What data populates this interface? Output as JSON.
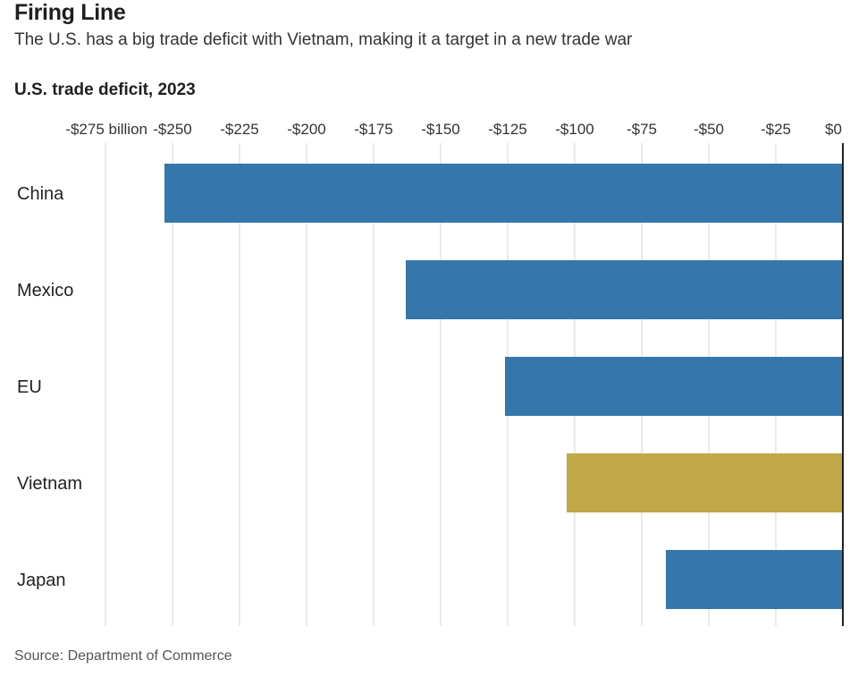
{
  "header": {
    "title": "Firing Line",
    "subtitle": "The U.S. has a big trade deficit with Vietnam, making it a target in a new trade war"
  },
  "source": "Source: Department of Commerce",
  "colors": {
    "default_bar": "#3577aa",
    "highlight_bar": "#c0a848",
    "grid": "#dcdcdc",
    "axis": "#222222"
  },
  "chart_data": {
    "type": "bar",
    "orientation": "horizontal",
    "title": "U.S. trade deficit, 2023",
    "categories": [
      "China",
      "Mexico",
      "EU",
      "Vietnam",
      "Japan"
    ],
    "values": [
      -253,
      -163,
      -126,
      -103,
      -66
    ],
    "highlight": "Vietnam",
    "xlim": [
      -275,
      0
    ],
    "ticks": [
      -275,
      -250,
      -225,
      -200,
      -175,
      -150,
      -125,
      -100,
      -75,
      -50,
      -25,
      0
    ],
    "tick_labels": [
      "-$275 billion",
      "-$250",
      "-$225",
      "-$200",
      "-$175",
      "-$150",
      "-$125",
      "-$100",
      "-$75",
      "-$50",
      "-$25",
      "$0"
    ],
    "grid": true,
    "xlabel": "",
    "ylabel": ""
  }
}
